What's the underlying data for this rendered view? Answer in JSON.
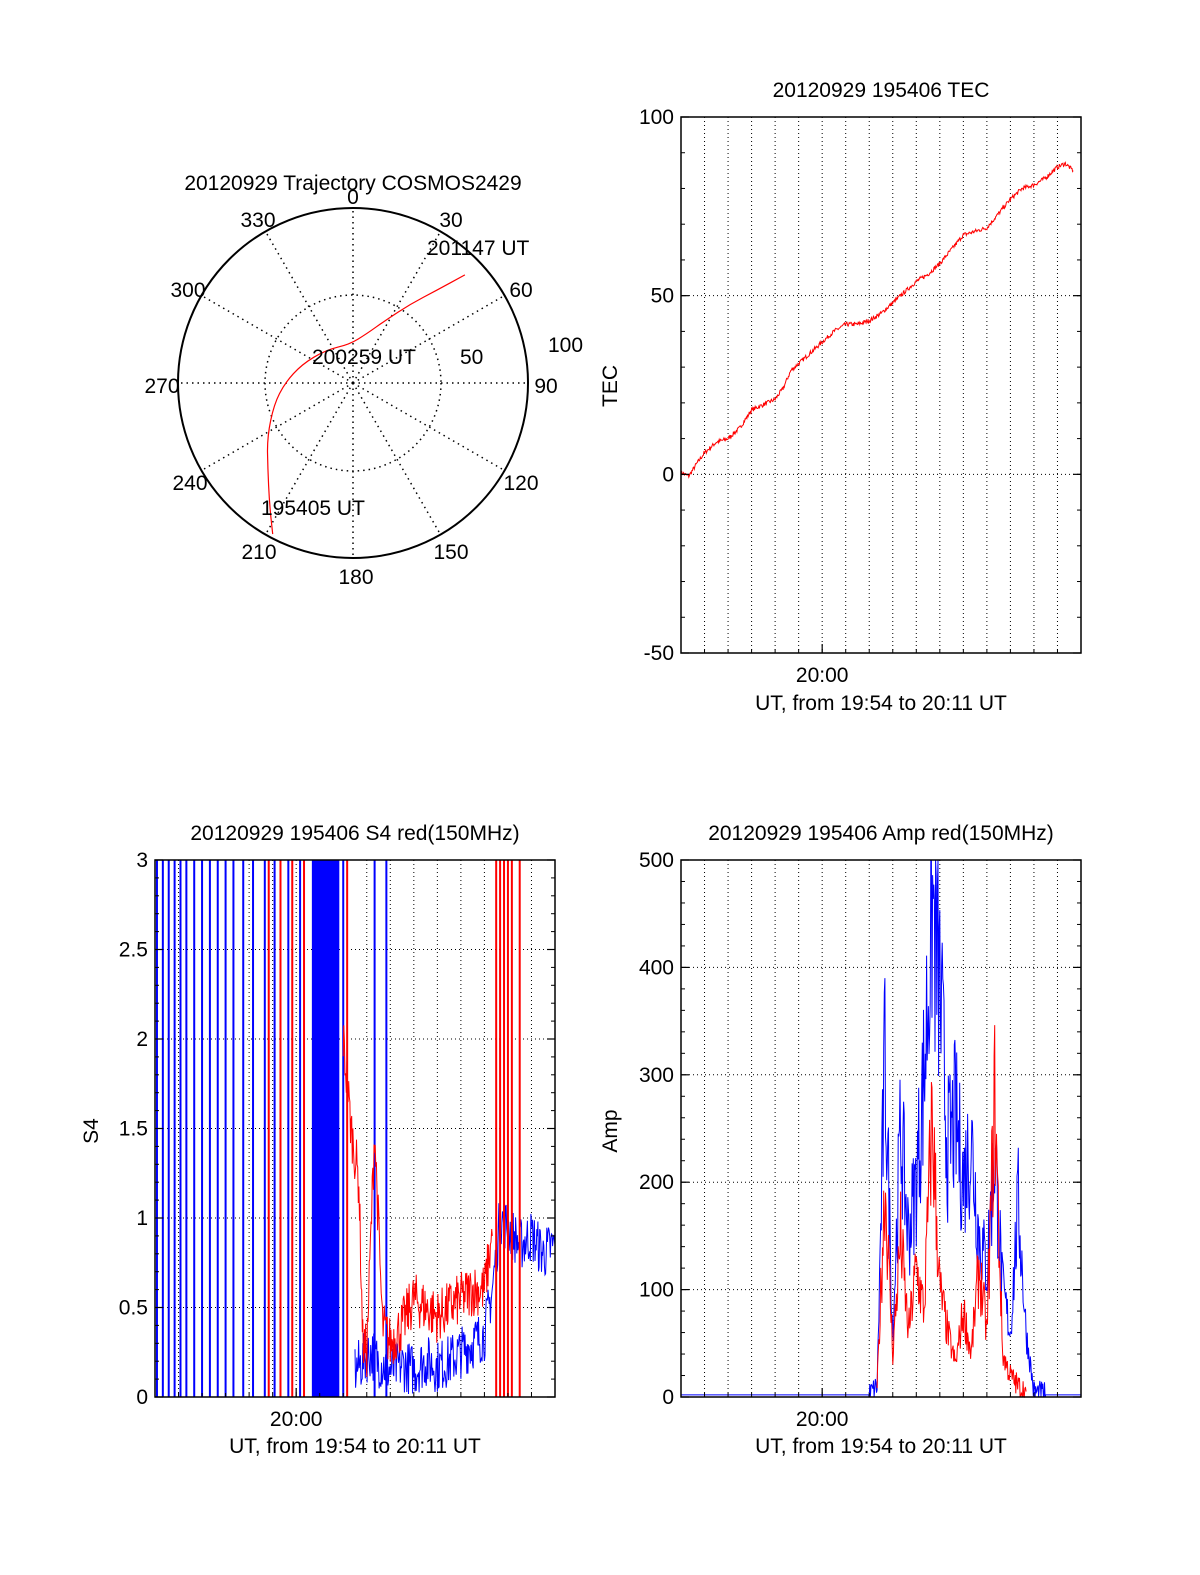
{
  "colors": {
    "red": "#ff0000",
    "blue": "#0000ff",
    "black": "#000000",
    "grid": "#000000"
  },
  "polar": {
    "title": "20120929 Trajectory COSMOS2429",
    "azimuth_labels": [
      "0",
      "30",
      "60",
      "90",
      "120",
      "150",
      "180",
      "210",
      "240",
      "270",
      "300",
      "330"
    ],
    "ring_labels": [
      "50",
      "100"
    ],
    "annotations": {
      "start": "195405 UT",
      "mid": "200259 UT",
      "end": "201147 UT"
    }
  },
  "chart_data": [
    {
      "id": "tec",
      "type": "line",
      "title": "20120929 195406 TEC",
      "xlabel": "UT, from 19:54 to 20:11 UT",
      "ylabel": "TEC",
      "xlim": [
        "19:54",
        "20:11"
      ],
      "ylim": [
        -50,
        100
      ],
      "yticks": [
        "-50",
        "0",
        "50",
        "100"
      ],
      "xticks": [
        "20:00"
      ],
      "grid": true,
      "series": [
        {
          "color": "red",
          "points": [
            [
              "19:54:00",
              0.5
            ],
            [
              "19:54:20",
              -0.5
            ],
            [
              "19:54:40",
              3
            ],
            [
              "19:55:00",
              6
            ],
            [
              "19:55:30",
              9
            ],
            [
              "19:56:00",
              10
            ],
            [
              "19:56:30",
              13
            ],
            [
              "19:57:00",
              18
            ],
            [
              "19:57:20",
              19
            ],
            [
              "19:57:40",
              20
            ],
            [
              "19:58:00",
              21
            ],
            [
              "19:58:20",
              24
            ],
            [
              "19:58:40",
              29
            ],
            [
              "19:59:00",
              31
            ],
            [
              "19:59:30",
              34
            ],
            [
              "20:00:00",
              37
            ],
            [
              "20:00:30",
              40
            ],
            [
              "20:01:00",
              42
            ],
            [
              "20:01:30",
              42
            ],
            [
              "20:02:00",
              43
            ],
            [
              "20:02:30",
              45
            ],
            [
              "20:03:00",
              48
            ],
            [
              "20:03:30",
              51
            ],
            [
              "20:04:00",
              54
            ],
            [
              "20:04:30",
              56
            ],
            [
              "20:05:00",
              59
            ],
            [
              "20:05:30",
              63
            ],
            [
              "20:06:00",
              67
            ],
            [
              "20:06:30",
              68
            ],
            [
              "20:07:00",
              69
            ],
            [
              "20:07:30",
              73
            ],
            [
              "20:08:00",
              77
            ],
            [
              "20:08:30",
              80
            ],
            [
              "20:09:00",
              81
            ],
            [
              "20:09:30",
              83
            ],
            [
              "20:10:00",
              86
            ],
            [
              "20:10:20",
              87
            ],
            [
              "20:10:40",
              85
            ]
          ]
        }
      ]
    },
    {
      "id": "s4",
      "type": "line",
      "title": "20120929 195406 S4 red(150MHz)",
      "xlabel": "UT, from 19:54 to 20:11 UT",
      "ylabel": "S4",
      "xlim": [
        "19:54",
        "20:11"
      ],
      "ylim": [
        0,
        3
      ],
      "yticks": [
        "0",
        "0.5",
        "1",
        "1.5",
        "2",
        "2.5",
        "3"
      ],
      "xticks": [
        "20:00"
      ],
      "grid": true,
      "series": [
        {
          "color": "blue",
          "spike_times": [
            "19:54:05",
            "19:54:20",
            "19:54:35",
            "19:54:50",
            "19:55:05",
            "19:55:20",
            "19:55:40",
            "19:56:00",
            "19:56:20",
            "19:56:40",
            "19:57:00",
            "19:57:20",
            "19:57:45",
            "19:58:10",
            "19:58:40",
            "19:59:05",
            "19:59:40",
            "20:00:10",
            "20:01:40",
            "20:02:00",
            "20:03:20",
            "20:03:50"
          ],
          "dense_block": [
            "20:00:40",
            "20:01:50"
          ],
          "points": [
            [
              "20:02:30",
              0.15
            ],
            [
              "20:02:50",
              0.2
            ],
            [
              "20:03:10",
              0.25
            ],
            [
              "20:03:30",
              0.2
            ],
            [
              "20:04:00",
              0.15
            ],
            [
              "20:04:30",
              0.18
            ],
            [
              "20:05:00",
              0.15
            ],
            [
              "20:05:30",
              0.2
            ],
            [
              "20:06:00",
              0.17
            ],
            [
              "20:06:30",
              0.2
            ],
            [
              "20:07:00",
              0.25
            ],
            [
              "20:07:30",
              0.3
            ],
            [
              "20:08:00",
              0.35
            ],
            [
              "20:08:20",
              0.6
            ],
            [
              "20:08:40",
              1.0
            ],
            [
              "20:09:00",
              0.95
            ],
            [
              "20:09:30",
              0.85
            ],
            [
              "20:10:00",
              0.9
            ],
            [
              "20:10:30",
              0.8
            ],
            [
              "20:11:00",
              0.85
            ]
          ]
        },
        {
          "color": "red",
          "spike_times": [
            "19:58:50",
            "19:59:20",
            "19:59:50",
            "20:00:20",
            "20:02:10",
            "20:08:30",
            "20:08:40",
            "20:08:50",
            "20:09:00",
            "20:09:10",
            "20:09:30"
          ],
          "points": [
            [
              "20:02:00",
              2.0
            ],
            [
              "20:02:20",
              1.5
            ],
            [
              "20:02:40",
              1.2
            ],
            [
              "20:02:50",
              0.3
            ],
            [
              "20:03:00",
              0.25
            ],
            [
              "20:03:20",
              1.5
            ],
            [
              "20:03:40",
              0.4
            ],
            [
              "20:04:00",
              0.3
            ],
            [
              "20:04:30",
              0.4
            ],
            [
              "20:05:00",
              0.55
            ],
            [
              "20:05:30",
              0.5
            ],
            [
              "20:06:00",
              0.45
            ],
            [
              "20:06:30",
              0.5
            ],
            [
              "20:07:00",
              0.55
            ],
            [
              "20:07:30",
              0.6
            ],
            [
              "20:08:00",
              0.6
            ],
            [
              "20:08:20",
              0.9
            ]
          ]
        }
      ]
    },
    {
      "id": "amp",
      "type": "line",
      "title": "20120929 195406 Amp red(150MHz)",
      "xlabel": "UT, from 19:54 to 20:11 UT",
      "ylabel": "Amp",
      "xlim": [
        "19:54",
        "20:11"
      ],
      "ylim": [
        0,
        500
      ],
      "yticks": [
        "0",
        "100",
        "200",
        "300",
        "400",
        "500"
      ],
      "xticks": [
        "20:00"
      ],
      "grid": true,
      "series": [
        {
          "color": "blue",
          "points": [
            [
              "19:54:00",
              2
            ],
            [
              "20:02:00",
              2
            ],
            [
              "20:02:20",
              10
            ],
            [
              "20:02:40",
              320
            ],
            [
              "20:03:00",
              60
            ],
            [
              "20:03:20",
              250
            ],
            [
              "20:03:40",
              150
            ],
            [
              "20:04:00",
              200
            ],
            [
              "20:04:20",
              300
            ],
            [
              "20:04:40",
              460
            ],
            [
              "20:05:00",
              380
            ],
            [
              "20:05:20",
              230
            ],
            [
              "20:05:40",
              260
            ],
            [
              "20:06:00",
              200
            ],
            [
              "20:06:20",
              240
            ],
            [
              "20:06:40",
              150
            ],
            [
              "20:07:00",
              120
            ],
            [
              "20:07:20",
              230
            ],
            [
              "20:07:40",
              100
            ],
            [
              "20:08:00",
              60
            ],
            [
              "20:08:20",
              180
            ],
            [
              "20:08:40",
              60
            ],
            [
              "20:09:00",
              5
            ],
            [
              "20:09:30",
              2
            ],
            [
              "20:11:00",
              2
            ]
          ]
        },
        {
          "color": "red",
          "points": [
            [
              "20:02:20",
              5
            ],
            [
              "20:02:40",
              200
            ],
            [
              "20:03:00",
              40
            ],
            [
              "20:03:20",
              150
            ],
            [
              "20:03:40",
              60
            ],
            [
              "20:04:00",
              120
            ],
            [
              "20:04:20",
              80
            ],
            [
              "20:04:40",
              260
            ],
            [
              "20:05:00",
              100
            ],
            [
              "20:05:20",
              60
            ],
            [
              "20:05:40",
              30
            ],
            [
              "20:06:00",
              80
            ],
            [
              "20:06:20",
              40
            ],
            [
              "20:06:40",
              120
            ],
            [
              "20:07:00",
              60
            ],
            [
              "20:07:20",
              280
            ],
            [
              "20:07:40",
              40
            ],
            [
              "20:08:00",
              20
            ],
            [
              "20:08:20",
              10
            ],
            [
              "20:08:40",
              5
            ]
          ]
        }
      ]
    },
    {
      "id": "trajectory",
      "type": "scatter",
      "title": "20120929 Trajectory COSMOS2429",
      "series": [
        {
          "color": "red",
          "points_az_zenith": [
            [
              208,
              88
            ],
            [
              215,
              75
            ],
            [
              225,
              62
            ],
            [
              238,
              52
            ],
            [
              255,
              42
            ],
            [
              270,
              35
            ],
            [
              290,
              28
            ],
            [
              320,
              22
            ],
            [
              355,
              20
            ],
            [
              15,
              26
            ],
            [
              28,
              37
            ],
            [
              36,
              50
            ],
            [
              42,
              64
            ],
            [
              46,
              80
            ]
          ]
        }
      ]
    }
  ]
}
